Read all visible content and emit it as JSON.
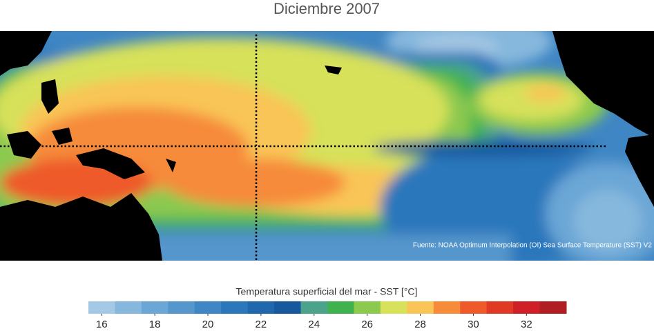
{
  "title": "Diciembre 2007",
  "source": "Fuente: NOAA Optimum Interpolation (OI) Sea Surface Temperature (SST) V2",
  "colorbar": {
    "label": "Temperatura superficial del mar - SST  [°C]",
    "lim": [
      15.5,
      33.5
    ],
    "ticks": [
      16,
      18,
      20,
      22,
      24,
      26,
      28,
      30,
      32
    ],
    "colors": [
      "#a5c8e4",
      "#86b8dd",
      "#6aa6d6",
      "#5596cc",
      "#3f86c4",
      "#2a77bb",
      "#1f68ad",
      "#18599d",
      "#4ba38c",
      "#3fb24f",
      "#8cc94f",
      "#d7e15a",
      "#f9c556",
      "#f68b3a",
      "#ee5a2a",
      "#e03a25",
      "#cf1f27",
      "#b01e23"
    ]
  }
}
